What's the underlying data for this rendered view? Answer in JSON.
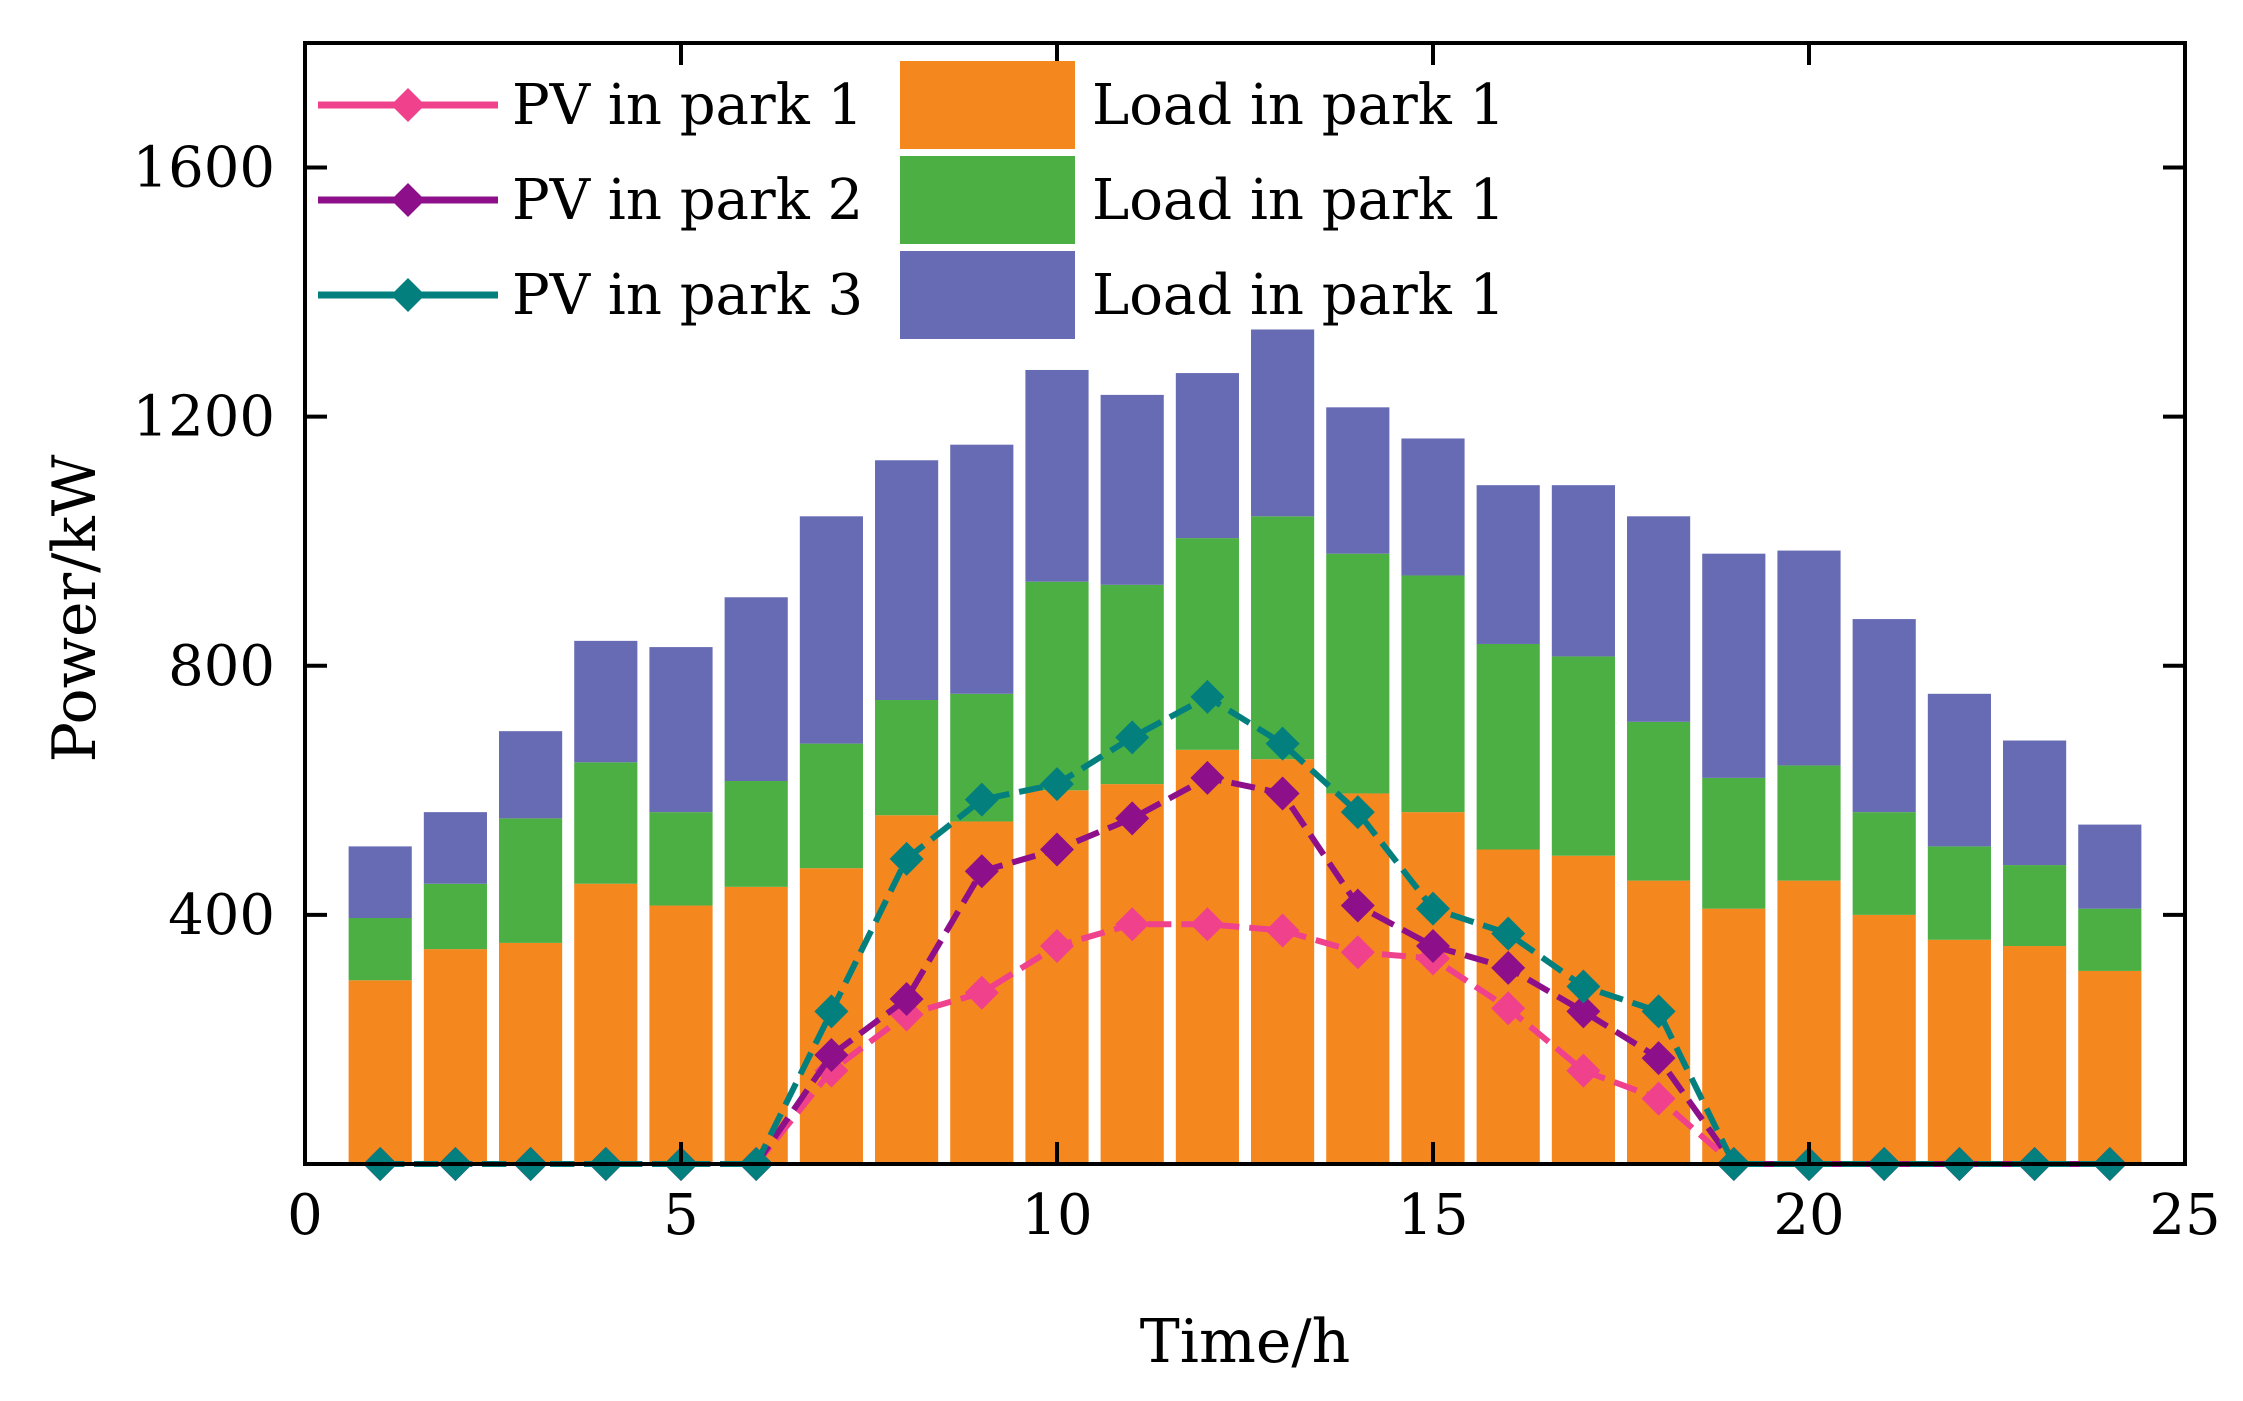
{
  "chart_data": {
    "type": "bar",
    "stacked": true,
    "xlabel": "Time/h",
    "ylabel": "Power/kW",
    "xlim": [
      0,
      25
    ],
    "ylim": [
      0,
      1800
    ],
    "xticks": [
      0,
      5,
      10,
      15,
      20,
      25
    ],
    "yticks": [
      400,
      800,
      1200,
      1600
    ],
    "grid": false,
    "legend_position": "top-left",
    "x": [
      1,
      2,
      3,
      4,
      5,
      6,
      7,
      8,
      9,
      10,
      11,
      12,
      13,
      14,
      15,
      16,
      17,
      18,
      19,
      20,
      21,
      22,
      23,
      24
    ],
    "bar_series": [
      {
        "name": "Load in park 1",
        "color": "#F5871F",
        "values": [
          295,
          345,
          355,
          450,
          415,
          445,
          475,
          560,
          550,
          600,
          610,
          665,
          650,
          595,
          565,
          505,
          495,
          455,
          410,
          455,
          400,
          360,
          350,
          310
        ]
      },
      {
        "name": "Load in park 1",
        "color": "#4CAF43",
        "values": [
          100,
          105,
          200,
          195,
          150,
          170,
          200,
          185,
          205,
          335,
          320,
          340,
          390,
          385,
          380,
          330,
          320,
          255,
          210,
          185,
          165,
          150,
          130,
          100
        ]
      },
      {
        "name": "Load in park 1",
        "color": "#676BB4",
        "values": [
          115,
          115,
          140,
          195,
          265,
          295,
          365,
          385,
          400,
          340,
          305,
          265,
          300,
          235,
          220,
          255,
          275,
          330,
          360,
          345,
          310,
          245,
          200,
          135
        ]
      }
    ],
    "line_series": [
      {
        "name": "PV in park 1",
        "color": "#F0418C",
        "marker": "diamond",
        "values": [
          0,
          0,
          0,
          0,
          0,
          0,
          150,
          240,
          275,
          350,
          385,
          385,
          375,
          340,
          330,
          250,
          150,
          105,
          0,
          0,
          0,
          0,
          0,
          0
        ]
      },
      {
        "name": "PV in park 2",
        "color": "#8E0F8A",
        "marker": "diamond",
        "values": [
          0,
          0,
          0,
          0,
          0,
          0,
          175,
          265,
          470,
          505,
          555,
          620,
          595,
          415,
          350,
          315,
          245,
          170,
          0,
          0,
          0,
          0,
          0,
          0
        ]
      },
      {
        "name": "PV in park 3",
        "color": "#03807E",
        "marker": "diamond",
        "values": [
          0,
          0,
          0,
          0,
          0,
          0,
          245,
          490,
          585,
          610,
          685,
          750,
          675,
          565,
          410,
          370,
          285,
          245,
          0,
          0,
          0,
          0,
          0,
          0
        ]
      }
    ]
  }
}
